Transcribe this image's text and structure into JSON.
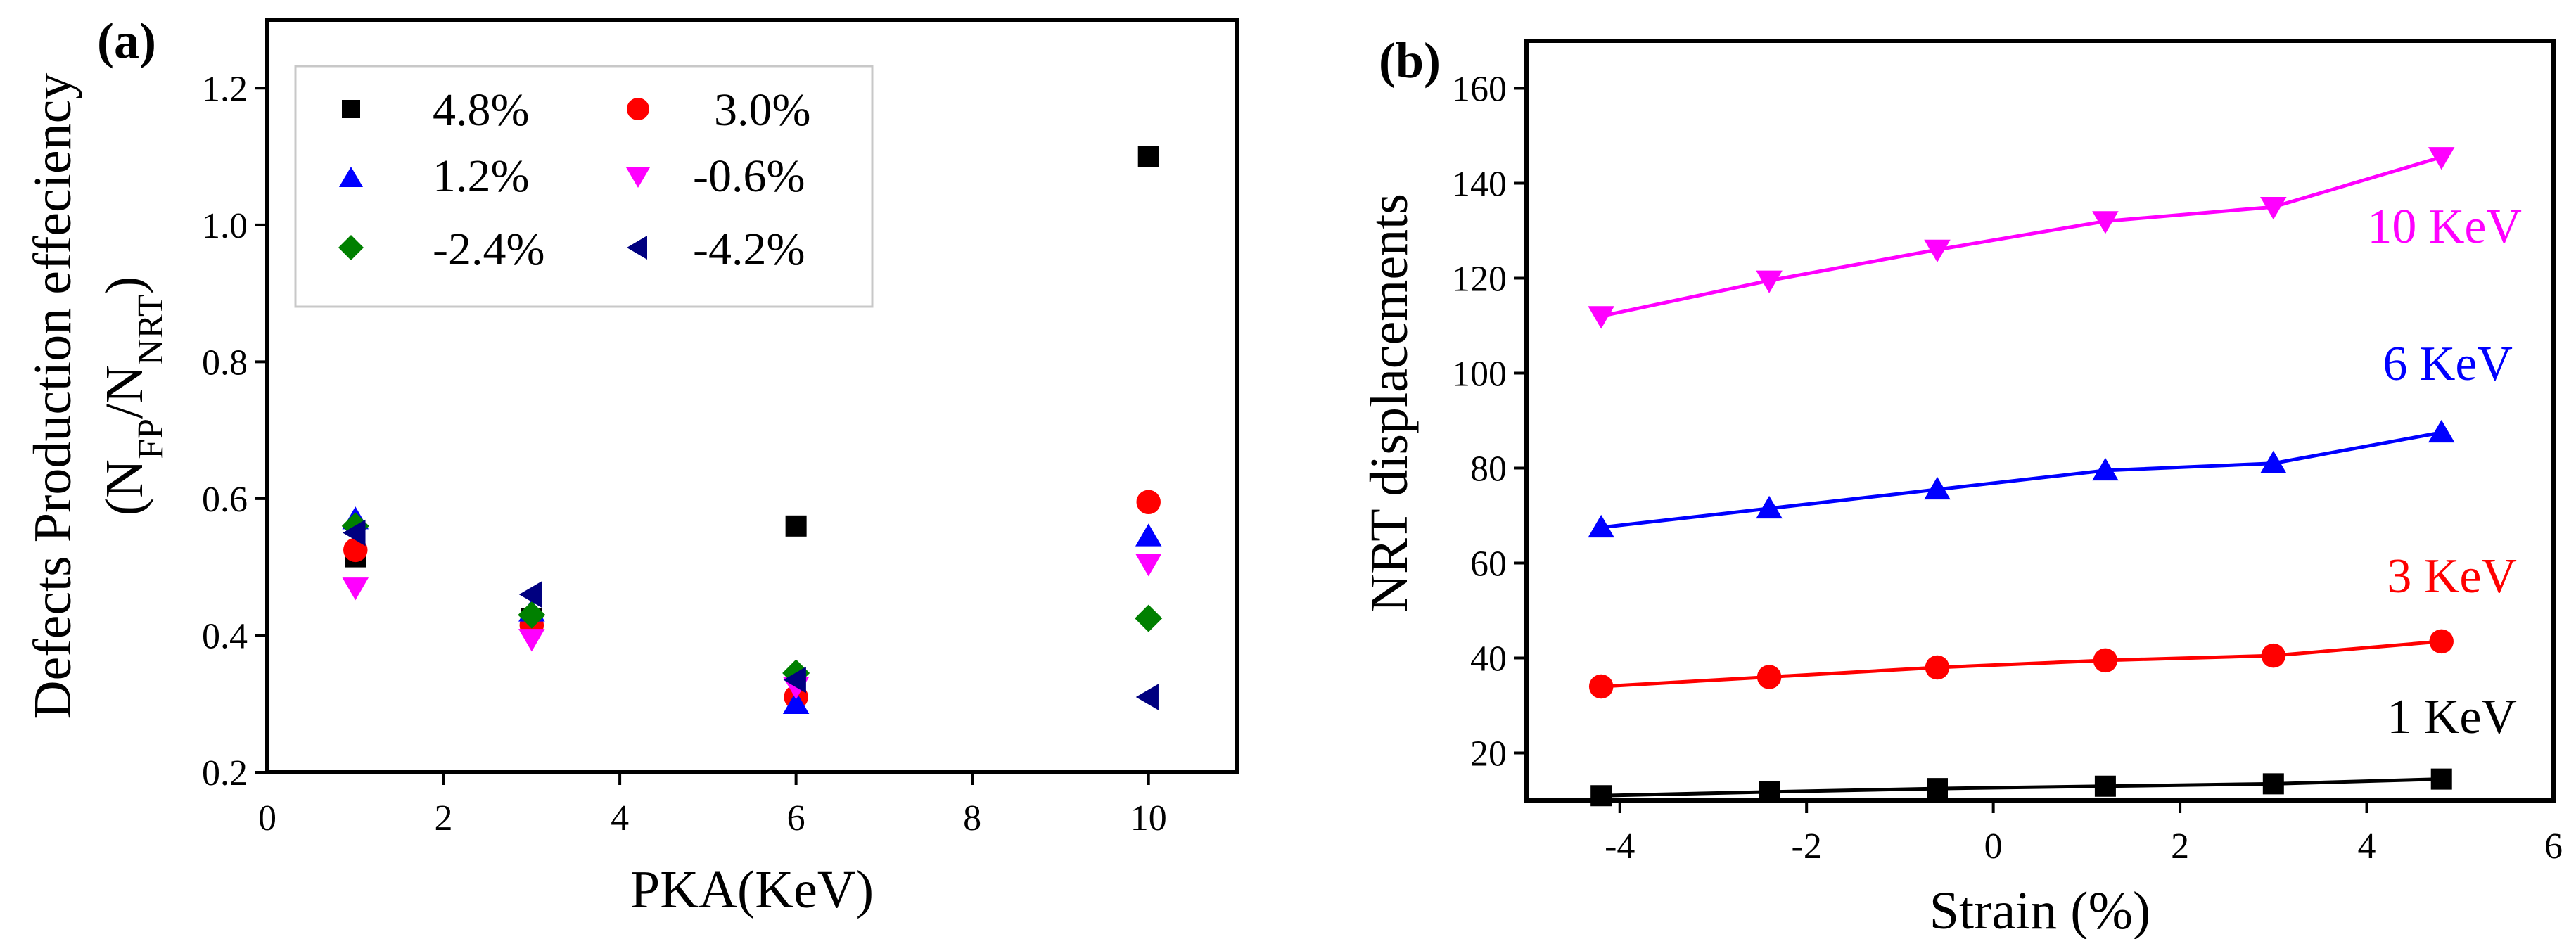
{
  "chart_data": [
    {
      "panel": "(a)",
      "type": "scatter",
      "xlabel": "PKA(KeV)",
      "ylabel_line1": "Defects Production effeciency",
      "ylabel_line2": {
        "open": "(N",
        "sub1": "FP",
        "mid": "/N",
        "sub2": "NRT",
        "close": ")"
      },
      "xlim": [
        0,
        11
      ],
      "ylim": [
        0.2,
        1.3
      ],
      "xticks": [
        0,
        2,
        4,
        6,
        8,
        10
      ],
      "xtick_labels": [
        "0",
        "2",
        "4",
        "6",
        "8",
        "10"
      ],
      "yticks": [
        0.2,
        0.4,
        0.6,
        0.8,
        1.0,
        1.2
      ],
      "ytick_labels": [
        "0.2",
        "0.4",
        "0.6",
        "0.8",
        "1.0",
        "1.2"
      ],
      "legend_position": "top-left",
      "series": [
        {
          "name": "4.8%",
          "marker": "square",
          "color": "#000000",
          "x": [
            1,
            3,
            6,
            10
          ],
          "y": [
            0.515,
            0.425,
            0.56,
            1.1
          ]
        },
        {
          "name": "3.0%",
          "marker": "circle",
          "color": "#ff0000",
          "x": [
            1,
            3,
            6,
            10
          ],
          "y": [
            0.525,
            0.415,
            0.31,
            0.595
          ]
        },
        {
          "name": "1.2%",
          "marker": "triangle-up",
          "color": "#0000ff",
          "x": [
            1,
            3,
            6,
            10
          ],
          "y": [
            0.57,
            0.435,
            0.3,
            0.545
          ]
        },
        {
          "name": "-0.6%",
          "marker": "triangle-down",
          "color": "#ff00ff",
          "x": [
            1,
            3,
            6,
            10
          ],
          "y": [
            0.47,
            0.395,
            0.325,
            0.505
          ]
        },
        {
          "name": "-2.4%",
          "marker": "diamond",
          "color": "#008000",
          "x": [
            1,
            3,
            6,
            10
          ],
          "y": [
            0.56,
            0.43,
            0.345,
            0.425
          ]
        },
        {
          "name": "-4.2%",
          "marker": "triangle-left",
          "color": "#000080",
          "x": [
            1,
            3,
            6,
            10
          ],
          "y": [
            0.55,
            0.46,
            0.335,
            0.31
          ]
        }
      ]
    },
    {
      "panel": "(b)",
      "type": "line",
      "xlabel": "Strain (%)",
      "ylabel": "NRT displacements",
      "xlim": [
        -5,
        6
      ],
      "ylim": [
        10,
        170
      ],
      "xticks": [
        -4,
        -2,
        0,
        2,
        4,
        6
      ],
      "xtick_labels": [
        "-4",
        "-2",
        "0",
        "2",
        "4",
        "6"
      ],
      "yticks": [
        20,
        40,
        60,
        80,
        100,
        120,
        140,
        160
      ],
      "ytick_labels": [
        "20",
        "40",
        "60",
        "80",
        "100",
        "120",
        "140",
        "160"
      ],
      "x": [
        -4.2,
        -2.4,
        -0.6,
        1.2,
        3.0,
        4.8
      ],
      "series": [
        {
          "name": "10 KeV",
          "marker": "triangle-down",
          "color": "#ff00ff",
          "values": [
            112,
            119.5,
            126,
            132,
            135,
            145.5
          ]
        },
        {
          "name": "6 KeV",
          "marker": "triangle-up",
          "color": "#0000ff",
          "values": [
            67.5,
            71.5,
            75.5,
            79.5,
            81,
            87.5
          ]
        },
        {
          "name": "3 KeV",
          "marker": "circle",
          "color": "#ff0000",
          "values": [
            34,
            36,
            38,
            39.5,
            40.5,
            43.5
          ]
        },
        {
          "name": "1 KeV",
          "marker": "square",
          "color": "#000000",
          "values": [
            11,
            11.8,
            12.5,
            13,
            13.5,
            14.5
          ]
        }
      ]
    }
  ]
}
